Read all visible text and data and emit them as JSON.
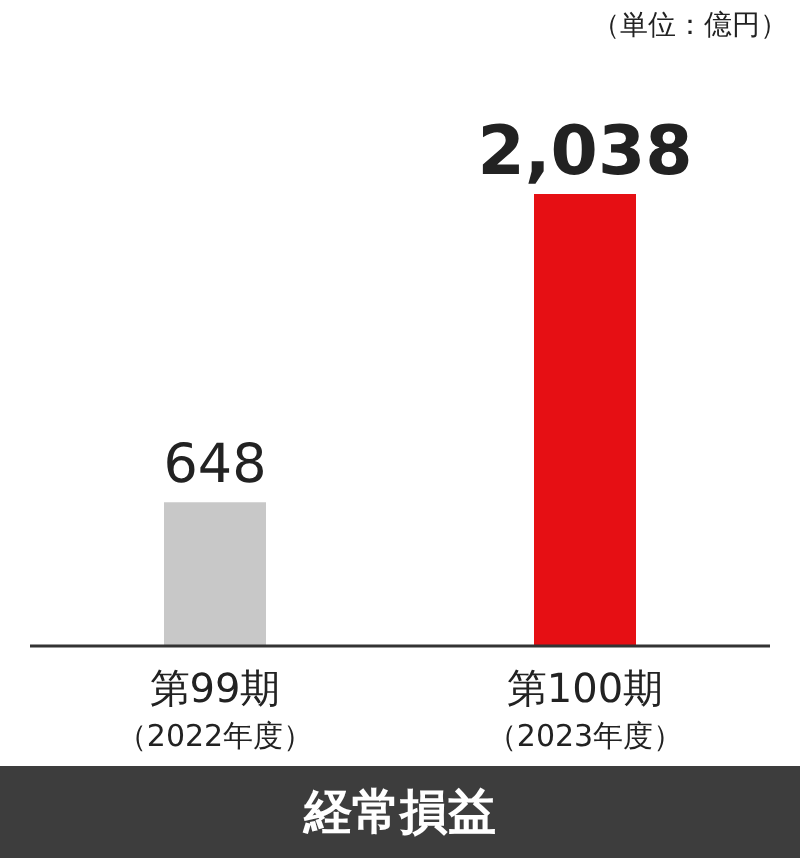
{
  "chart_data": {
    "type": "bar",
    "title": "経常損益",
    "annotations": [
      "（単位：億円）"
    ],
    "categories": [
      "第99期（2022年度）",
      "第100期（2023年度）"
    ],
    "values": [
      648,
      2038
    ],
    "colors": [
      "#c8c8c8",
      "#e60f14"
    ],
    "value_labels": [
      "648",
      "2,038"
    ],
    "grid": false,
    "legend": false
  }
}
